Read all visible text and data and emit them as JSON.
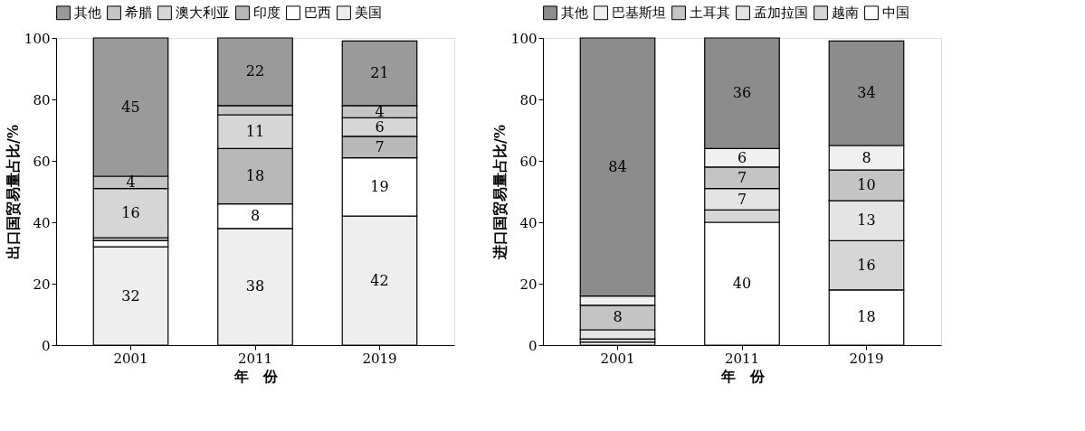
{
  "chart_data": [
    {
      "type": "bar",
      "stacked": true,
      "categories": [
        "2001",
        "2011",
        "2019"
      ],
      "xlabel": "年　份",
      "ylabel": "出口国贸易量占比/%",
      "ylim": [
        0,
        100
      ],
      "yticks": [
        0,
        20,
        40,
        60,
        80,
        100
      ],
      "grid": false,
      "legend": "top",
      "series": [
        {
          "name": "美国",
          "color": "#eeeeee",
          "values": [
            32,
            38,
            42
          ],
          "value_labels": [
            "32",
            "38",
            "42"
          ]
        },
        {
          "name": "巴西",
          "color": "#ffffff",
          "values": [
            2,
            8,
            19
          ],
          "value_labels": [
            null,
            "8",
            "19"
          ]
        },
        {
          "name": "印度",
          "color": "#b8b8b8",
          "values": [
            1,
            18,
            7
          ],
          "value_labels": [
            null,
            "18",
            "7"
          ]
        },
        {
          "name": "澳大利亚",
          "color": "#d6d6d6",
          "values": [
            16,
            11,
            6
          ],
          "value_labels": [
            "16",
            "11",
            "6"
          ]
        },
        {
          "name": "希腊",
          "color": "#c4c4c4",
          "values": [
            4,
            3,
            4
          ],
          "value_labels": [
            "4",
            null,
            "4"
          ]
        },
        {
          "name": "其他",
          "color": "#9a9a9a",
          "values": [
            45,
            22,
            21
          ],
          "value_labels": [
            "45",
            "22",
            "21"
          ]
        }
      ]
    },
    {
      "type": "bar",
      "stacked": true,
      "categories": [
        "2001",
        "2011",
        "2019"
      ],
      "xlabel": "年　份",
      "ylabel": "进口国贸易量占比/%",
      "ylim": [
        0,
        100
      ],
      "yticks": [
        0,
        20,
        40,
        60,
        80,
        100
      ],
      "grid": false,
      "legend": "top",
      "series": [
        {
          "name": "中国",
          "color": "#ffffff",
          "values": [
            1,
            40,
            18
          ],
          "value_labels": [
            null,
            "40",
            "18"
          ]
        },
        {
          "name": "越南",
          "color": "#d6d6d6",
          "values": [
            1,
            4,
            16
          ],
          "value_labels": [
            null,
            null,
            "16"
          ]
        },
        {
          "name": "孟加拉国",
          "color": "#e4e4e4",
          "values": [
            3,
            7,
            13
          ],
          "value_labels": [
            null,
            "7",
            "13"
          ]
        },
        {
          "name": "土耳其",
          "color": "#c4c4c4",
          "values": [
            8,
            7,
            10
          ],
          "value_labels": [
            "8",
            "7",
            "10"
          ]
        },
        {
          "name": "巴基斯坦",
          "color": "#f0f0f0",
          "values": [
            3,
            6,
            8
          ],
          "value_labels": [
            null,
            "6",
            "8"
          ]
        },
        {
          "name": "其他",
          "color": "#8c8c8c",
          "values": [
            84,
            36,
            34
          ],
          "value_labels": [
            "84",
            "36",
            "34"
          ]
        }
      ]
    }
  ]
}
